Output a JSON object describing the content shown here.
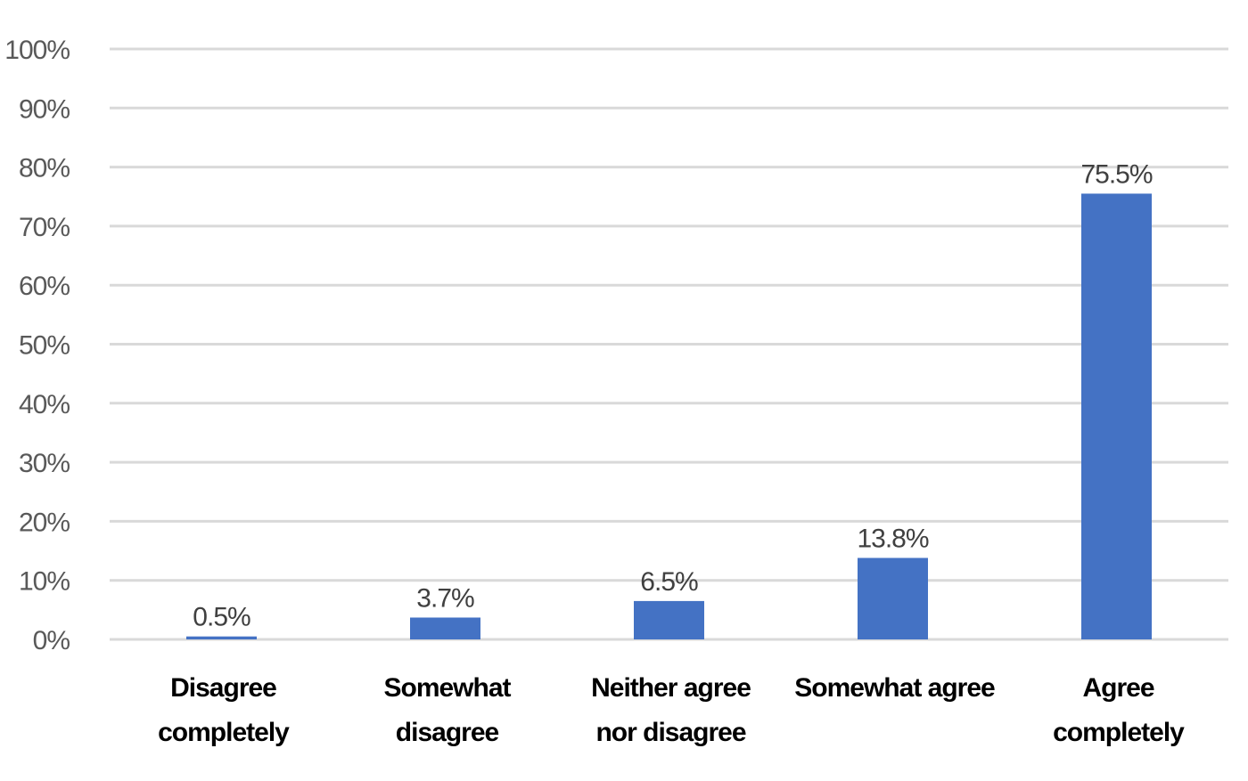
{
  "chart_data": {
    "type": "bar",
    "categories": [
      [
        "Disagree",
        "completely"
      ],
      [
        "Somewhat",
        "disagree"
      ],
      [
        "Neither agree",
        "nor disagree"
      ],
      [
        "Somewhat agree"
      ],
      [
        "Agree",
        "completely"
      ]
    ],
    "values": [
      0.5,
      3.7,
      6.5,
      13.8,
      75.5
    ],
    "data_labels": [
      "0.5%",
      "3.7%",
      "6.5%",
      "13.8%",
      "75.5%"
    ],
    "yticks": [
      "0%",
      "10%",
      "20%",
      "30%",
      "40%",
      "50%",
      "60%",
      "70%",
      "80%",
      "90%",
      "100%"
    ],
    "ylim": [
      0,
      100
    ],
    "grid": true,
    "bar_color": "#4472c4",
    "title": "",
    "xlabel": "",
    "ylabel": ""
  }
}
